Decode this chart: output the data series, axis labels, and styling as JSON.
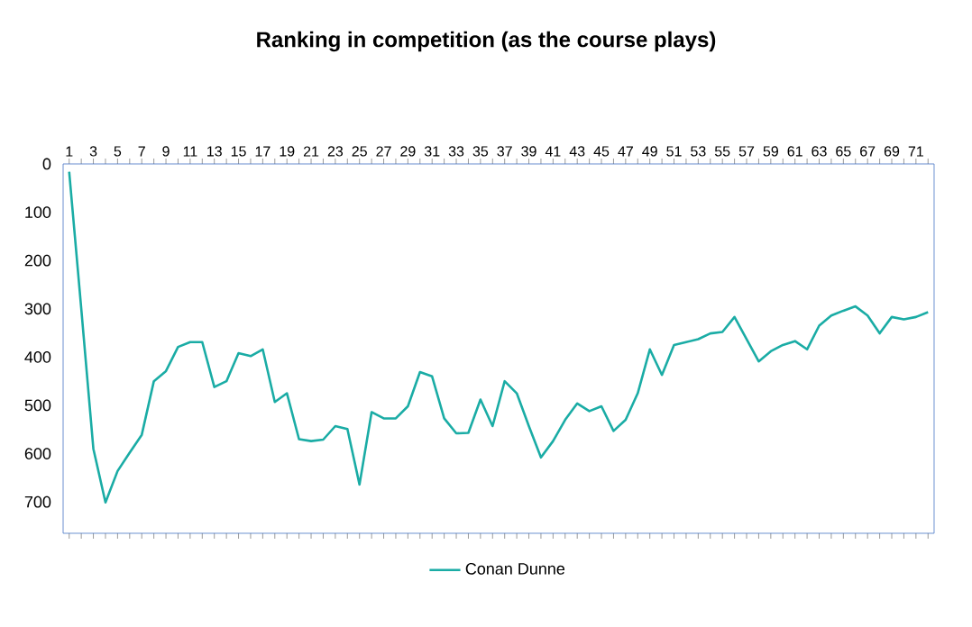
{
  "chart_data": {
    "type": "line",
    "title": "Ranking in competition (as the course plays)",
    "categories": [
      "1",
      null,
      "3",
      null,
      "5",
      null,
      "7",
      null,
      "9",
      null,
      "11",
      null,
      "13",
      null,
      "15",
      null,
      "17",
      null,
      "19",
      null,
      "21",
      null,
      "23",
      null,
      "25",
      null,
      "27",
      null,
      "29",
      null,
      "31",
      null,
      "33",
      null,
      "35",
      null,
      "37",
      null,
      "39",
      null,
      "41",
      null,
      "43",
      null,
      "45",
      null,
      "47",
      null,
      "49",
      null,
      "51",
      null,
      "53",
      null,
      "55",
      null,
      "57",
      null,
      "59",
      null,
      "61",
      null,
      "63",
      null,
      "65",
      null,
      "67",
      null,
      "69",
      null,
      "71",
      null
    ],
    "series": [
      {
        "name": "Conan Dunne",
        "color": "#1aaca5",
        "values": [
          16,
          300,
          590,
          701,
          636,
          598,
          561,
          450,
          429,
          379,
          369,
          369,
          462,
          450,
          392,
          398,
          384,
          493,
          475,
          570,
          574,
          571,
          543,
          549,
          664,
          514,
          527,
          527,
          502,
          431,
          440,
          527,
          558,
          557,
          488,
          543,
          450,
          475,
          543,
          608,
          574,
          530,
          496,
          512,
          502,
          553,
          530,
          475,
          384,
          437,
          375,
          369,
          363,
          351,
          348,
          317,
          363,
          409,
          388,
          375,
          367,
          384,
          335,
          314,
          304,
          295,
          314,
          351,
          317,
          322,
          317,
          307
        ]
      }
    ],
    "ylim": [
      765,
      0
    ],
    "yticks": [
      0,
      100,
      200,
      300,
      400,
      500,
      600,
      700
    ],
    "grid": false,
    "legend": "bottom",
    "marker": "none",
    "line_style": "solid"
  }
}
